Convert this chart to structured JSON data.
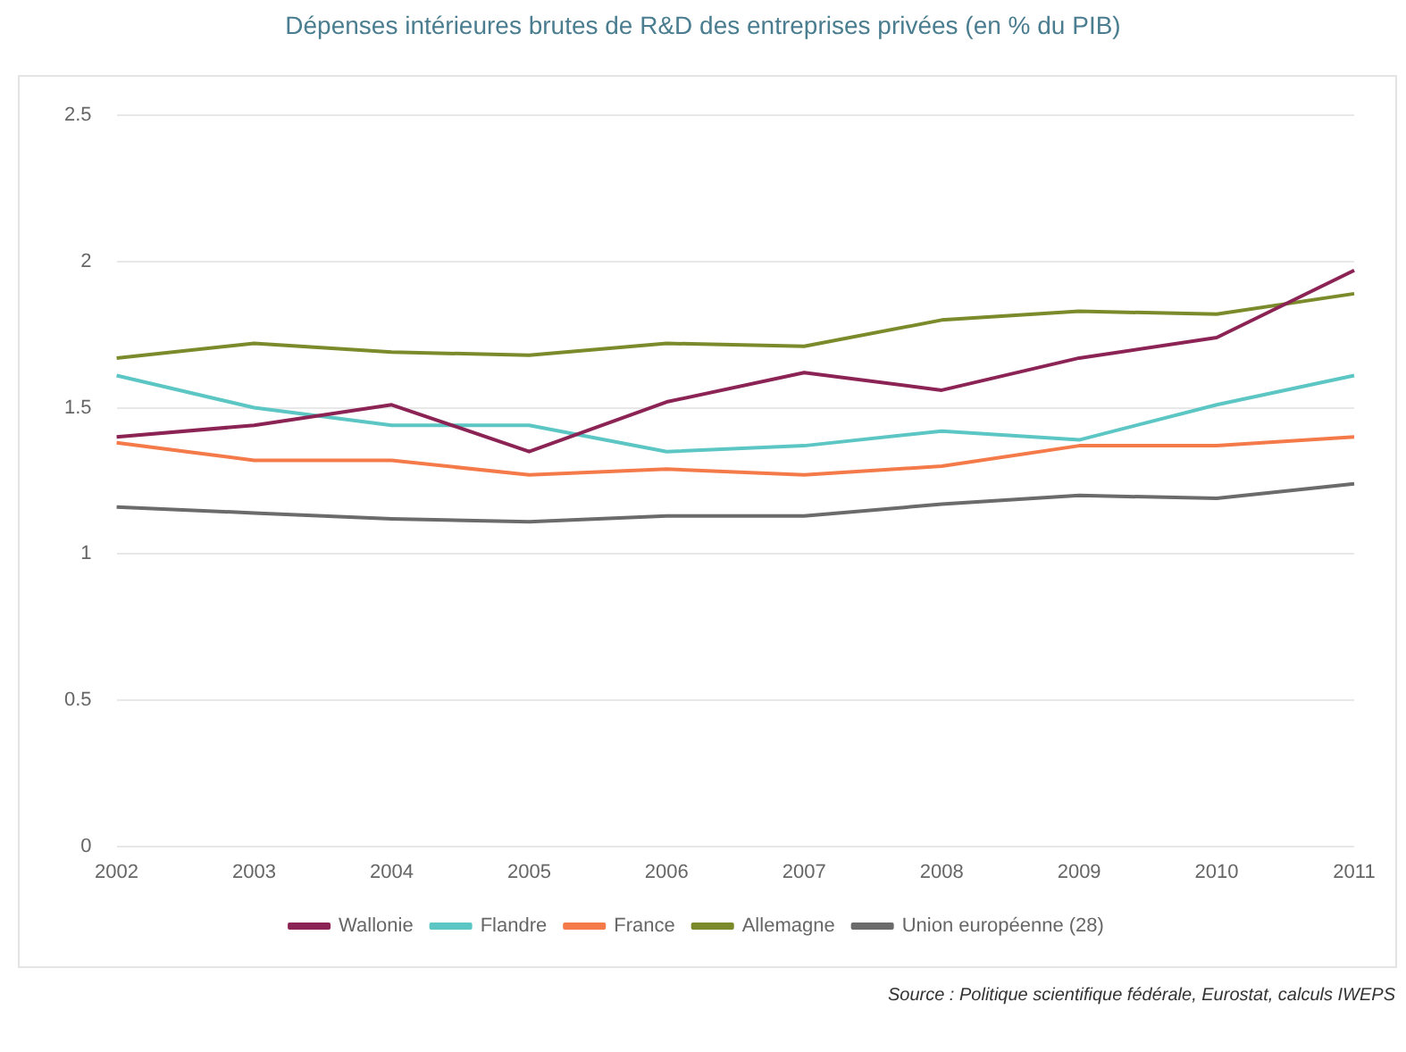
{
  "chart_data": {
    "type": "line",
    "title": "Dépenses intérieures brutes de R&D des entreprises privées (en % du PIB)",
    "categories": [
      "2002",
      "2003",
      "2004",
      "2005",
      "2006",
      "2007",
      "2008",
      "2009",
      "2010",
      "2011"
    ],
    "series": [
      {
        "name": "Wallonie",
        "color": "#8b2455",
        "values": [
          1.4,
          1.44,
          1.51,
          1.35,
          1.52,
          1.62,
          1.56,
          1.67,
          1.74,
          1.97
        ]
      },
      {
        "name": "Flandre",
        "color": "#5cc6c4",
        "values": [
          1.61,
          1.5,
          1.44,
          1.44,
          1.35,
          1.37,
          1.42,
          1.39,
          1.51,
          1.61
        ]
      },
      {
        "name": "France",
        "color": "#f47a4a",
        "values": [
          1.38,
          1.32,
          1.32,
          1.27,
          1.29,
          1.27,
          1.3,
          1.37,
          1.37,
          1.4
        ]
      },
      {
        "name": "Allemagne",
        "color": "#7b8a2a",
        "values": [
          1.67,
          1.72,
          1.69,
          1.68,
          1.72,
          1.71,
          1.8,
          1.83,
          1.82,
          1.89
        ]
      },
      {
        "name": "Union européenne (28)",
        "color": "#6b6b6b",
        "values": [
          1.16,
          1.14,
          1.12,
          1.11,
          1.13,
          1.13,
          1.17,
          1.2,
          1.19,
          1.24
        ]
      }
    ],
    "ylim": [
      0,
      2.5
    ],
    "yticks": [
      0,
      0.5,
      1,
      1.5,
      2,
      2.5
    ],
    "grid": "y",
    "legend": "bottom",
    "marker": "none",
    "line_style": "solid",
    "annotations": [
      "Source : Politique scientifique fédérale, Eurostat, calculs IWEPS"
    ]
  }
}
